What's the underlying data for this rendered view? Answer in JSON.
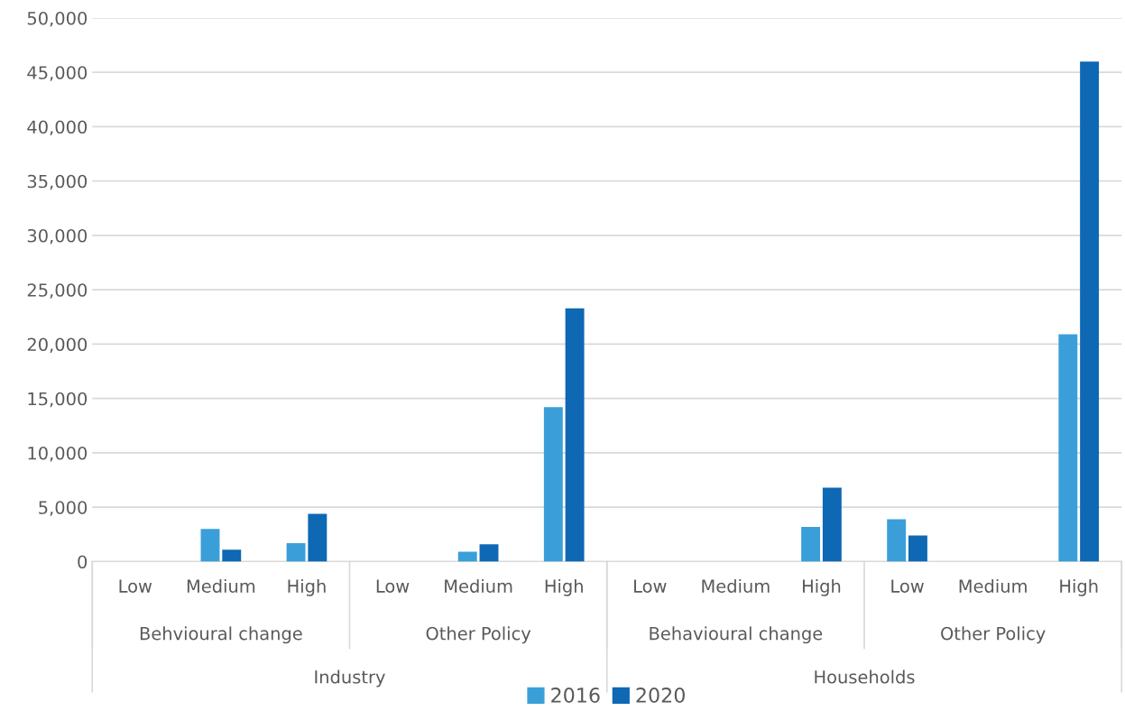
{
  "chart_data": {
    "type": "bar",
    "categories": [
      "Low",
      "Medium",
      "High",
      "Low",
      "Medium",
      "High",
      "Low",
      "Medium",
      "High",
      "Low",
      "Medium",
      "High"
    ],
    "series": [
      {
        "name": "2016",
        "color": "#3a9fd8",
        "values": [
          null,
          3000,
          1700,
          null,
          900,
          14200,
          null,
          null,
          3200,
          3900,
          null,
          20900
        ]
      },
      {
        "name": "2020",
        "color": "#0e68b3",
        "values": [
          null,
          1100,
          4400,
          null,
          1600,
          23300,
          null,
          null,
          6800,
          2400,
          null,
          46000
        ]
      }
    ],
    "annotations": [
      "Behvioural change",
      "Other Policy",
      "Behavioural change",
      "Other Policy",
      "Industry",
      "Households"
    ],
    "ylim": [
      0,
      50000
    ],
    "yticks": [
      {
        "value": 0,
        "label": "0"
      },
      {
        "value": 5000,
        "label": "5,000"
      },
      {
        "value": 10000,
        "label": "10,000"
      },
      {
        "value": 15000,
        "label": "15,000"
      },
      {
        "value": 20000,
        "label": "20,000"
      },
      {
        "value": 25000,
        "label": "25,000"
      },
      {
        "value": 30000,
        "label": "30,000"
      },
      {
        "value": 35000,
        "label": "35,000"
      },
      {
        "value": 40000,
        "label": "40,000"
      },
      {
        "value": 45000,
        "label": "45,000"
      },
      {
        "value": 50000,
        "label": "50,000"
      }
    ],
    "grid": "y",
    "legend": "bottom"
  }
}
